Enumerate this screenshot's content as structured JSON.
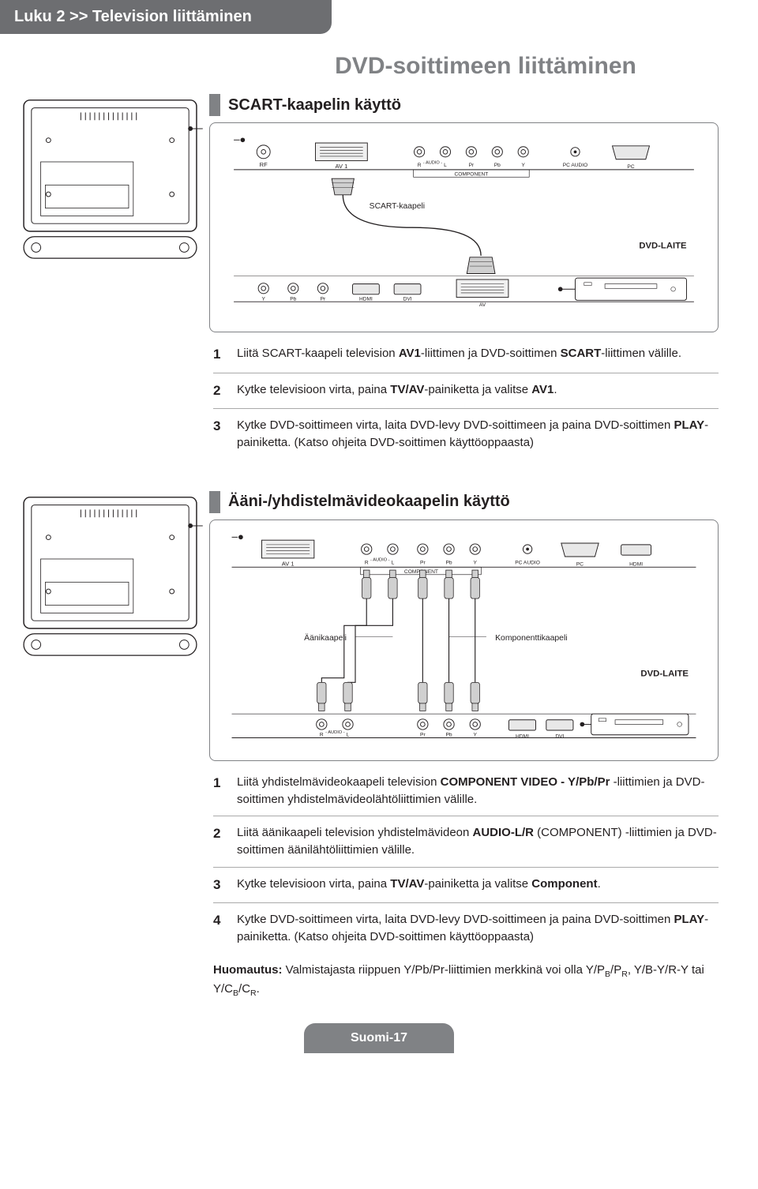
{
  "header": {
    "chapter": "Luku 2 >> Television liittäminen"
  },
  "page_title": "DVD-soittimeen liittäminen",
  "section1": {
    "title": "SCART-kaapelin käyttö",
    "diagram": {
      "top_ports": [
        "RF",
        "AV 1",
        "R",
        "AUDIO",
        "L",
        "Pr",
        "Pb",
        "Y",
        "PC AUDIO",
        "PC"
      ],
      "component_label": "COMPONENT",
      "cable_label": "SCART-kaapeli",
      "device_label": "DVD-LAITE",
      "bottom_ports": [
        "Y",
        "Pb",
        "Pr",
        "HDMI",
        "DVI",
        "AV"
      ]
    },
    "steps": [
      {
        "n": "1",
        "html": "Liitä SCART-kaapeli television <b>AV1</b>-liittimen ja DVD-soittimen <b>SCART</b>-liittimen välille."
      },
      {
        "n": "2",
        "html": "Kytke televisioon virta, paina <b>TV/AV</b>-painiketta ja valitse <b>AV1</b>."
      },
      {
        "n": "3",
        "html": "Kytke DVD-soittimeen virta, laita DVD-levy DVD-soittimeen ja paina DVD-soittimen <b>PLAY</b>-painiketta. (Katso ohjeita DVD-soittimen käyttöoppaasta)"
      }
    ]
  },
  "section2": {
    "title": "Ääni-/yhdistelmävideokaapelin käyttö",
    "diagram": {
      "top_ports": [
        "AV 1",
        "R",
        "AUDIO",
        "L",
        "Pr",
        "Pb",
        "Y",
        "PC AUDIO",
        "PC",
        "HDMI"
      ],
      "component_label": "COMPONENT",
      "audio_cable": "Äänikaapeli",
      "comp_cable": "Komponenttikaapeli",
      "device_label": "DVD-LAITE",
      "bottom_ports": [
        "R",
        "AUDIO",
        "L",
        "Pr",
        "Pb",
        "Y",
        "HDMI",
        "DVI"
      ]
    },
    "steps": [
      {
        "n": "1",
        "html": "Liitä yhdistelmävideokaapeli television <b>COMPONENT VIDEO - Y/Pb/Pr</b> -liittimien ja DVD-soittimen yhdistelmävideolähtöliittimien välille."
      },
      {
        "n": "2",
        "html": "Liitä äänikaapeli television yhdistelmävideon <b>AUDIO-L/R</b> (COMPONENT) -liittimien ja DVD-soittimen äänilähtöliittimien välille."
      },
      {
        "n": "3",
        "html": "Kytke televisioon virta, paina <b>TV/AV</b>-painiketta ja valitse <b>Component</b>."
      },
      {
        "n": "4",
        "html": "Kytke DVD-soittimeen virta, laita DVD-levy DVD-soittimeen ja paina DVD-soittimen <b>PLAY</b>-painiketta. (Katso ohjeita DVD-soittimen käyttöoppaasta)"
      }
    ],
    "note": "Valmistajasta riippuen Y/Pb/Pr-liittimien merkkinä voi olla Y/P",
    "note_rest": ", Y/B-Y/R-Y tai Y/C",
    "note_label": "Huomautus:"
  },
  "footer": "Suomi-17",
  "colors": {
    "gray_bar": "#6d6e71",
    "gray_title": "#808285",
    "text": "#231f20",
    "border": "#808285"
  }
}
